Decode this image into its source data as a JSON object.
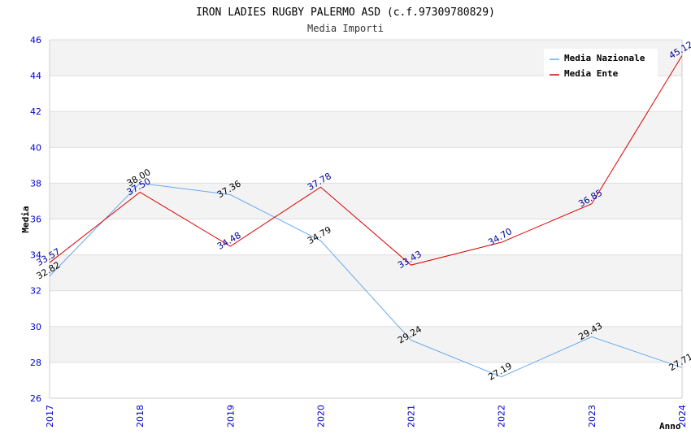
{
  "chart_data": {
    "type": "line",
    "title": "IRON LADIES RUGBY PALERMO ASD (c.f.97309780829)",
    "subtitle": "Media Importi",
    "xlabel": "Anno",
    "ylabel": "Media",
    "x": [
      "2017",
      "2018",
      "2019",
      "2020",
      "2021",
      "2022",
      "2023",
      "2024"
    ],
    "ylim": [
      26,
      46
    ],
    "yticks": [
      "26",
      "28",
      "30",
      "32",
      "34",
      "36",
      "38",
      "40",
      "42",
      "44",
      "46"
    ],
    "legend_position": "top-right",
    "series": [
      {
        "name": "Media Nazionale",
        "color": "#66aaee",
        "label_color": "#000000",
        "values": [
          32.82,
          38.0,
          37.36,
          34.79,
          29.24,
          27.19,
          29.43,
          27.71
        ],
        "labels": [
          "32.82",
          "38.00",
          "37.36",
          "34.79",
          "29.24",
          "27.19",
          "29.43",
          "27.71"
        ]
      },
      {
        "name": "Media Ente",
        "color": "#dd0000",
        "label_color": "#000099",
        "values": [
          33.57,
          37.5,
          34.48,
          37.78,
          33.43,
          34.7,
          36.85,
          45.12
        ],
        "labels": [
          "33.57",
          "37.50",
          "34.48",
          "37.78",
          "33.43",
          "34.70",
          "36.85",
          "45.12"
        ]
      }
    ]
  }
}
